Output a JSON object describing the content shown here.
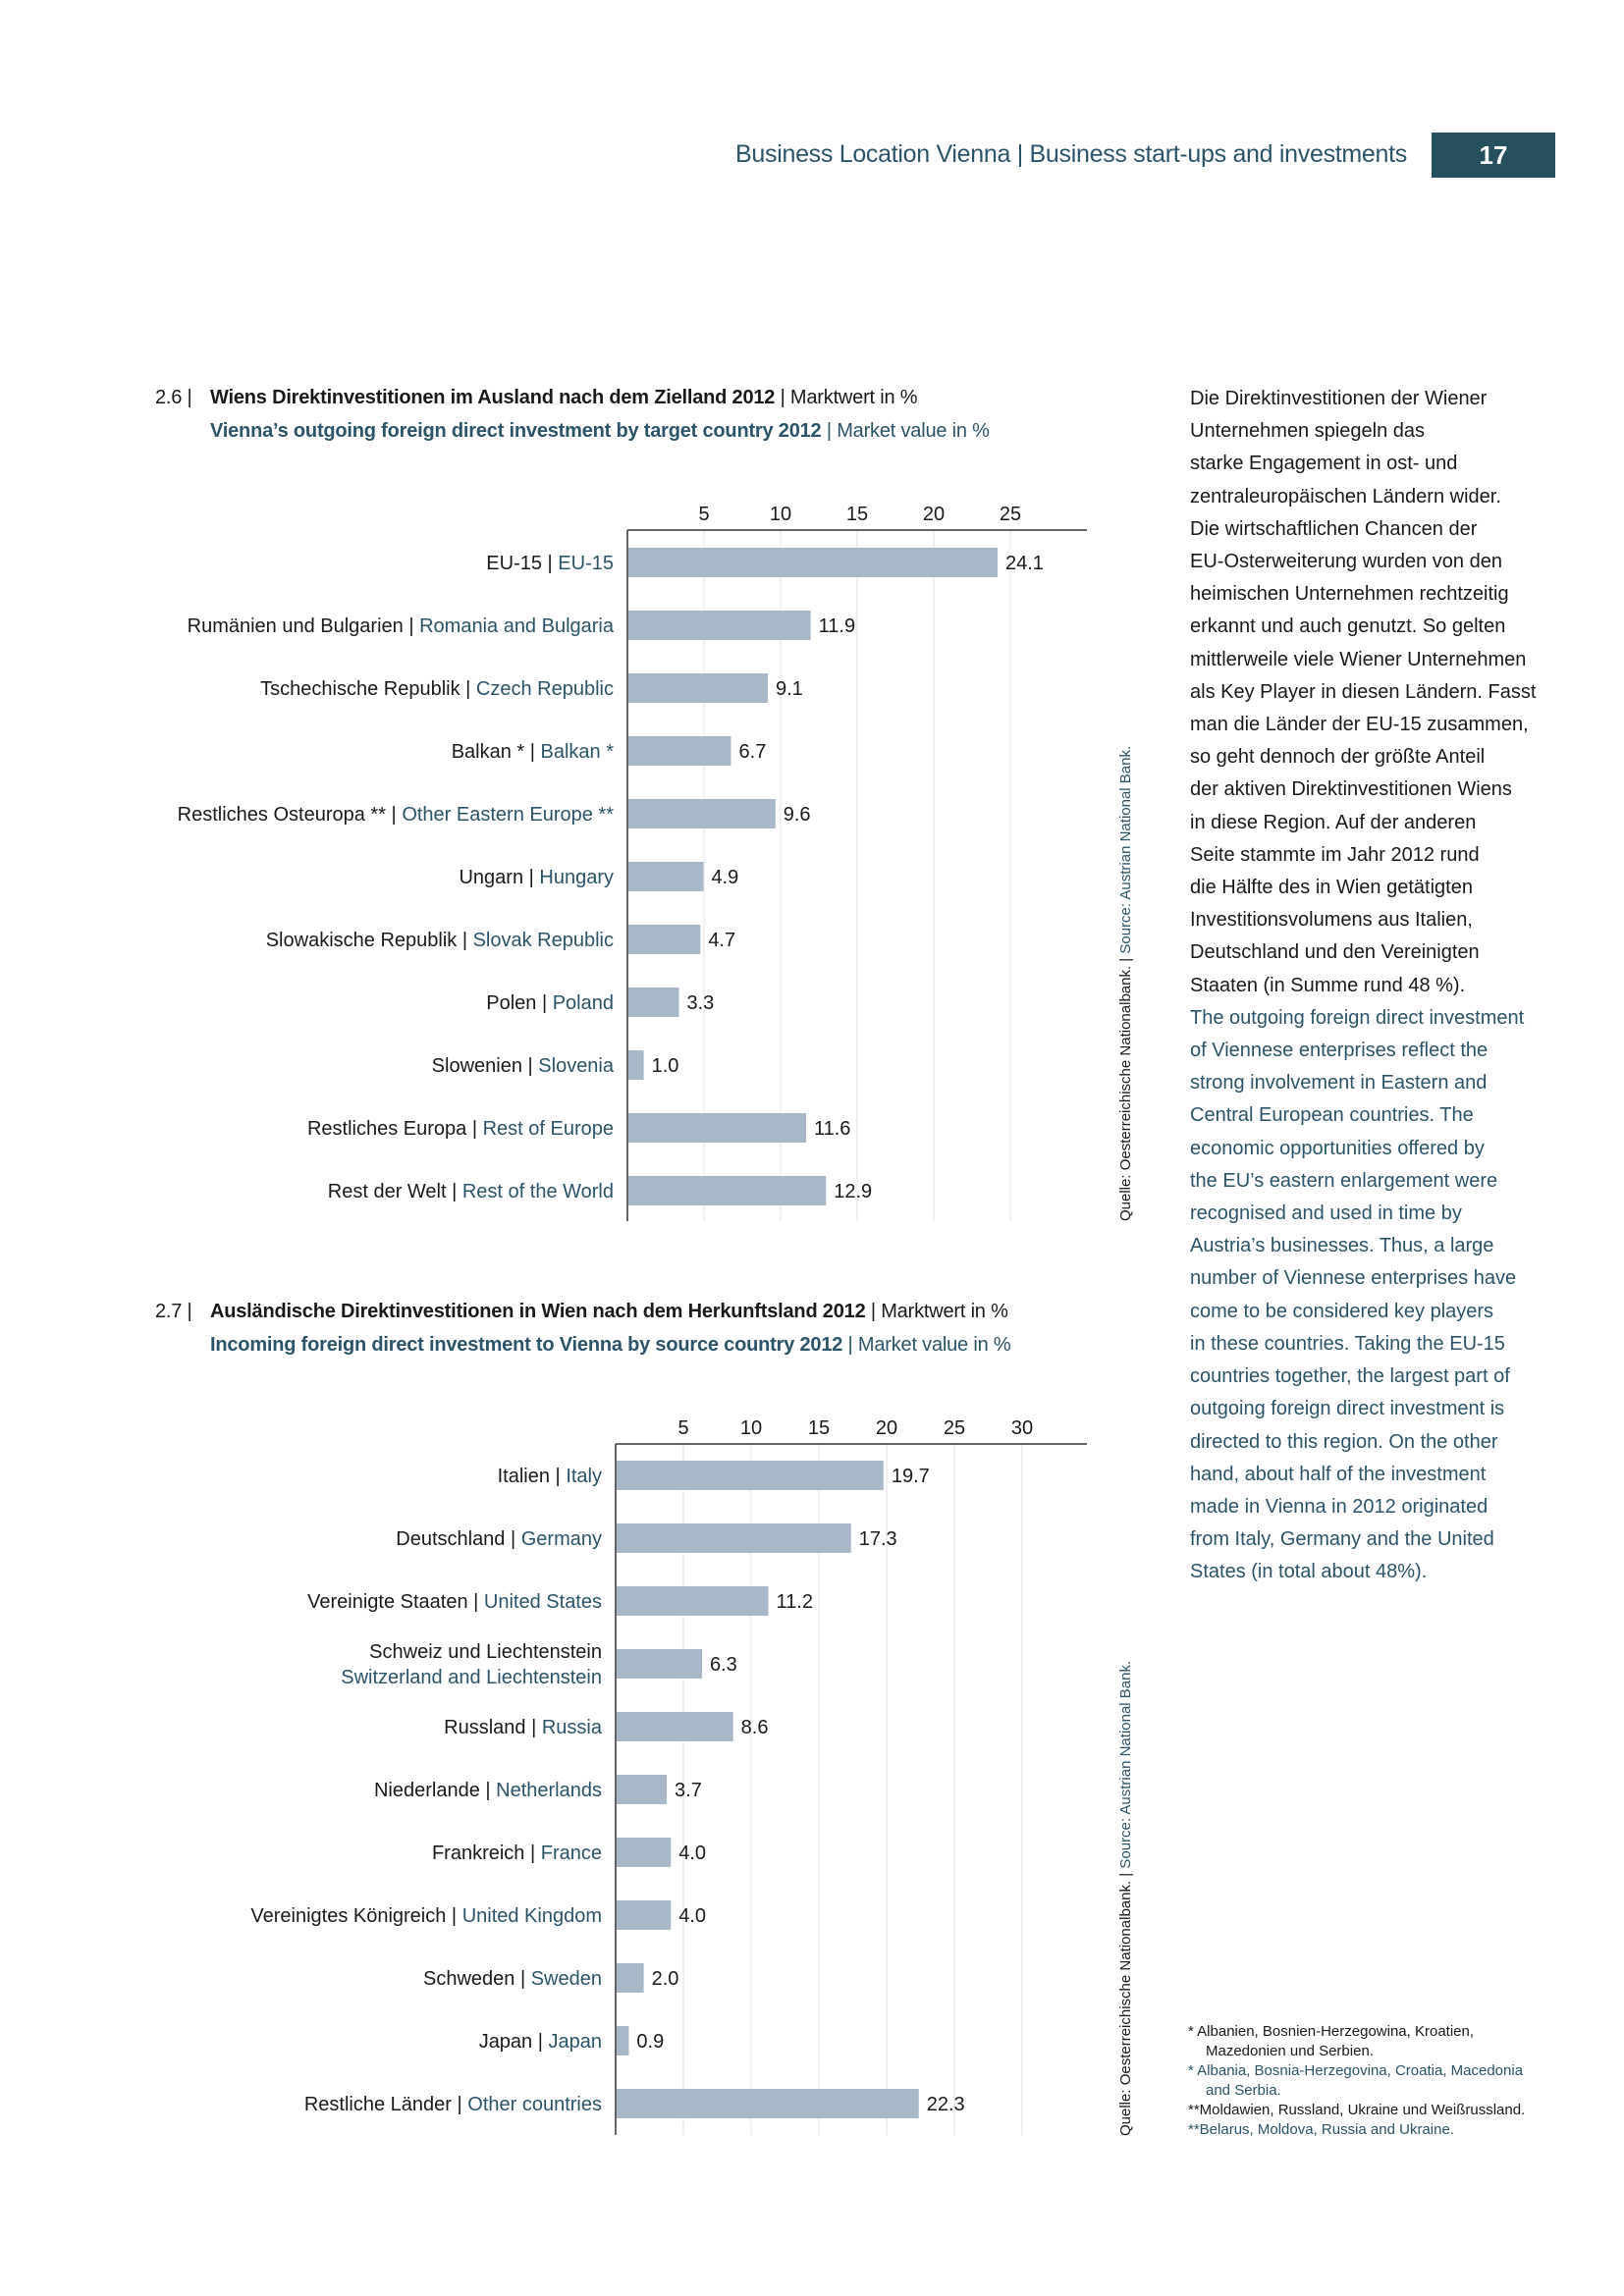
{
  "header": {
    "running_head": "Business Location Vienna | Business start-ups and investments",
    "page_number": "17"
  },
  "colors": {
    "accent": "#2b5468",
    "bar": "#a8b8c8",
    "page_box": "#27505f"
  },
  "figure_26": {
    "number": "2.6 |",
    "title_de": "Wiens Direktinvestitionen im Ausland nach dem Zielland 2012",
    "unit_de": " | Marktwert in %",
    "title_en": "Vienna’s outgoing foreign direct investment by target country 2012",
    "unit_en": " | Market value in %",
    "source_de": "Quelle: Oesterreichische Nationalbank. | ",
    "source_en": "Source: Austrian National Bank."
  },
  "figure_27": {
    "number": "2.7 |",
    "title_de": "Ausländische Direktinvestitionen in Wien nach dem Herkunftsland 2012",
    "unit_de": " | Marktwert in %",
    "title_en": "Incoming foreign direct investment to Vienna by source country 2012",
    "unit_en": " | Market value in %",
    "source_de": "Quelle: Oesterreichische Nationalbank. | ",
    "source_en": "Source: Austrian National Bank."
  },
  "chart_data": [
    {
      "type": "bar",
      "orientation": "horizontal",
      "title": "Wiens Direktinvestitionen im Ausland nach dem Zielland 2012 | Vienna’s outgoing foreign direct investment by target country 2012",
      "xlabel": "Market value in %",
      "xticks": [
        5,
        10,
        15,
        20,
        25
      ],
      "xlim": [
        0,
        30
      ],
      "grid": true,
      "categories_de": [
        "EU-15",
        "Rumänien und Bulgarien",
        "Tschechische Republik",
        "Balkan *",
        "Restliches Osteuropa **",
        "Ungarn",
        "Slowakische Republik",
        "Polen",
        "Slowenien",
        "Restliches Europa",
        "Rest der Welt"
      ],
      "categories_en": [
        "EU-15",
        "Romania and Bulgaria",
        "Czech Republic",
        "Balkan *",
        "Other Eastern Europe **",
        "Hungary",
        "Slovak Republic",
        "Poland",
        "Slovenia",
        "Rest of Europe",
        "Rest of the World"
      ],
      "values": [
        24.1,
        11.9,
        9.1,
        6.7,
        9.6,
        4.9,
        4.7,
        3.3,
        1.0,
        11.6,
        12.9
      ],
      "value_labels": [
        "24.1",
        "11.9",
        "9.1",
        "6.7",
        "9.6",
        "4.9",
        "4.7",
        "3.3",
        "1.0",
        "11.6",
        "12.9"
      ]
    },
    {
      "type": "bar",
      "orientation": "horizontal",
      "title": "Ausländische Direktinvestitionen in Wien nach dem Herkunftsland 2012 | Incoming foreign direct investment to Vienna by source country 2012",
      "xlabel": "Market value in %",
      "xticks": [
        5,
        10,
        15,
        20,
        25,
        30
      ],
      "xlim": [
        0,
        35
      ],
      "grid": true,
      "categories_de": [
        "Italien",
        "Deutschland",
        "Vereinigte Staaten",
        "Schweiz und Liechtenstein",
        "Russland",
        "Niederlande",
        "Frankreich",
        "Vereinigtes Königreich",
        "Schweden",
        "Japan",
        "Restliche Länder"
      ],
      "categories_en": [
        "Italy",
        "Germany",
        "United States",
        "Switzerland and Liechtenstein",
        "Russia",
        "Netherlands",
        "France",
        "United Kingdom",
        "Sweden",
        "Japan",
        "Other countries"
      ],
      "values": [
        19.7,
        17.3,
        11.2,
        6.3,
        8.6,
        3.7,
        4.0,
        4.0,
        2.0,
        0.9,
        22.3
      ],
      "value_labels": [
        "19.7",
        "17.3",
        "11.2",
        "6.3",
        "8.6",
        "3.7",
        "4.0",
        "4.0",
        "2.0",
        "0.9",
        "22.3"
      ]
    }
  ],
  "side_text": {
    "de_lines": [
      "Die Direktinvestitionen der Wiener",
      "Unternehmen spiegeln das",
      "starke Engagement in ost- und",
      "zentraleuropäischen Ländern wider.",
      "Die wirtschaftlichen Chancen der",
      "EU-Osterweiterung wurden von den",
      "heimischen Unternehmen rechtzeitig",
      "erkannt und auch genutzt. So gelten",
      "mittlerweile viele Wiener Unternehmen",
      "als Key Player in diesen Ländern.  Fasst",
      "man die Länder der EU-15 zusammen,",
      "so geht dennoch der größte Anteil",
      "der aktiven Direktinvestitionen Wiens",
      "in diese Region. Auf der anderen",
      "Seite stammte im Jahr 2012 rund",
      "die Hälfte des in Wien getätigten",
      "Investitionsvolumens aus Italien,",
      "Deutschland und den Vereinigten",
      "Staaten (in Summe rund 48 %)."
    ],
    "en_lines": [
      "The outgoing foreign direct investment",
      "of Viennese enterprises reflect the",
      "strong involvement in Eastern and",
      "Central European countries. The",
      "economic opportunities offered by",
      "the EU’s eastern enlargement were",
      "recognised and used in time by",
      "Austria’s businesses. Thus, a large",
      "number of Viennese enterprises have",
      "come to be considered key players",
      "in these countries. Taking the EU-15",
      "countries together, the largest part of",
      "outgoing foreign direct investment is",
      "directed to this region. On the other",
      "hand, about half of the investment",
      "made in Vienna in 2012 originated",
      "from Italy, Germany and the United",
      "States (in total about 48%)."
    ]
  },
  "footnotes": {
    "de1_a": "*  Albanien, Bosnien-Herzegowina, Kroatien,",
    "de1_b": "Mazedonien und Serbien.",
    "en1_a": "*  Albania, Bosnia-Herzegovina, Croatia, Macedonia",
    "en1_b": "and Serbia.",
    "de2": "**Moldawien, Russland, Ukraine und Weißrussland.",
    "en2": "**Belarus, Moldova, Russia and Ukraine."
  }
}
